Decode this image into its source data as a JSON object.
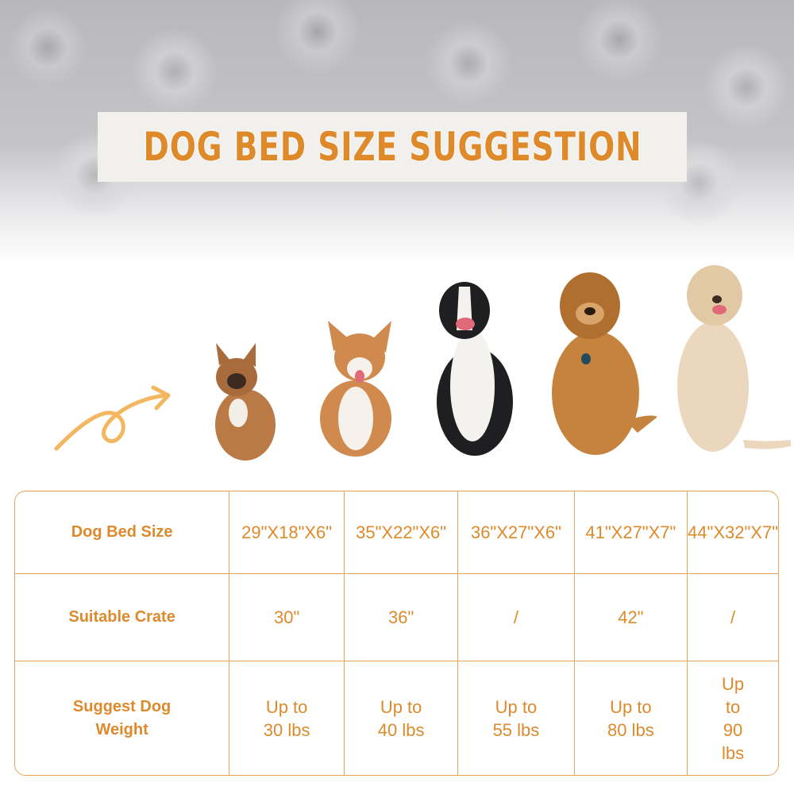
{
  "title": "DOG BED SIZE SUGGESTION",
  "accent_color": "#df8a2a",
  "icons": [
    "curly-arrow-icon"
  ],
  "dogs": [
    "french-bulldog",
    "corgi",
    "border-collie",
    "golden-retriever",
    "labrador"
  ],
  "table": {
    "rows": [
      {
        "label": "Dog Bed Size",
        "values": [
          "29\"X18\"X6\"",
          "35\"X22\"X6\"",
          "36\"X27\"X6\"",
          "41\"X27\"X7\"",
          "44\"X32\"X7\""
        ]
      },
      {
        "label": "Suitable Crate",
        "values": [
          "30\"",
          "36\"",
          "/",
          "42\"",
          "/"
        ]
      },
      {
        "label": "Suggest Dog Weight",
        "values": [
          "Up to 30 lbs",
          "Up to 40 lbs",
          "Up to 55 lbs",
          "Up to 80 lbs",
          "Up to 90 lbs"
        ]
      }
    ]
  }
}
